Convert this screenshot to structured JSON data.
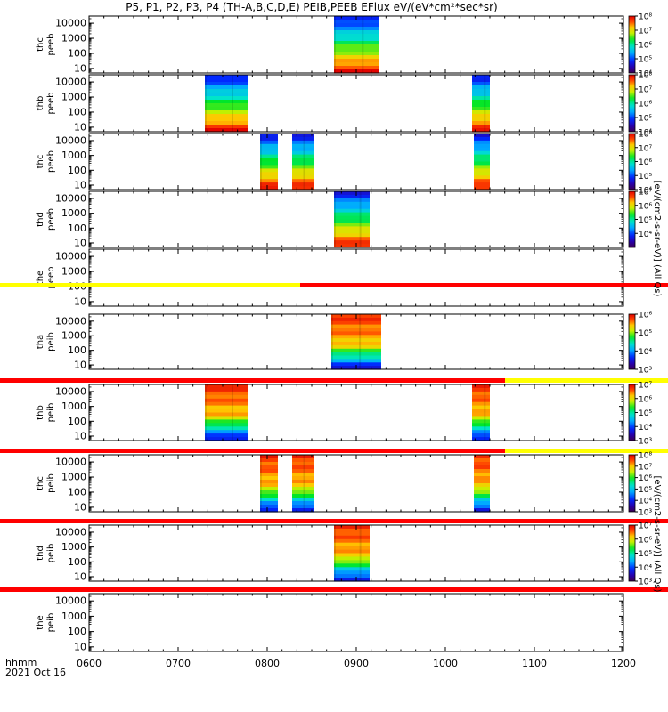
{
  "title": "P5, P1, P2, P3, P4 (TH-A,B,C,D,E) PEIB,PEEB EFlux eV/(eV*cm²*sec*sr)",
  "time_axis": {
    "start_label": "hhmm",
    "date_label": "2021 Oct 16",
    "ticks": [
      "0600",
      "0700",
      "0800",
      "0900",
      "1000",
      "1100",
      "1200"
    ],
    "tick_hours": [
      6,
      7,
      8,
      9,
      10,
      11,
      12
    ],
    "range_hours": [
      6,
      12
    ]
  },
  "colorbar_labels": {
    "electron": "[eV/(cm2-s-sr-eV)] (All Qs)",
    "ion": "[eV/(cm2-s-sr-eV)] (All Qs)"
  },
  "chart_data": {
    "type": "heatmap",
    "y_scale": "log",
    "y_range_eV": [
      5,
      30000
    ],
    "y_ticks": [
      "10000",
      "1000",
      "100",
      "10"
    ],
    "y_tick_values": [
      10000,
      1000,
      100,
      10
    ],
    "panels": [
      {
        "probe": "thc",
        "species": "peeb",
        "label1": "thc",
        "label2": "peeb",
        "blocks": [
          [
            8.75,
            9.25
          ]
        ],
        "cbar": {
          "min_exp": 4,
          "max_exp": 8,
          "ticks": [
            "10⁸",
            "10⁷",
            "10⁶",
            "10⁵",
            "10⁴"
          ]
        }
      },
      {
        "probe": "thb",
        "species": "peeb",
        "label1": "thb",
        "label2": "peeb",
        "blocks": [
          [
            7.3,
            7.78
          ],
          [
            10.3,
            10.5
          ]
        ],
        "cbar": {
          "min_exp": 4,
          "max_exp": 8,
          "ticks": [
            "10⁸",
            "10⁷",
            "10⁶",
            "10⁵",
            "10⁴"
          ]
        }
      },
      {
        "probe": "thc",
        "species": "peeb",
        "label1": "thc",
        "label2": "peeb",
        "blocks": [
          [
            7.92,
            8.12
          ],
          [
            8.28,
            8.53
          ],
          [
            10.32,
            10.5
          ]
        ],
        "cbar": {
          "min_exp": 4,
          "max_exp": 8,
          "ticks": [
            "10⁸",
            "10⁷",
            "10⁶",
            "10⁵",
            "10⁴"
          ]
        }
      },
      {
        "probe": "thd",
        "species": "peeb",
        "label1": "thd",
        "label2": "peeb",
        "blocks": [
          [
            8.75,
            9.15
          ]
        ],
        "cbar": {
          "min_exp": 4,
          "max_exp": 8,
          "ticks": [
            "10⁷",
            "10⁶",
            "10⁵",
            "10⁴"
          ]
        }
      },
      {
        "probe": "the",
        "species": "peeb",
        "label1": "the",
        "label2": "peeb",
        "blocks": [],
        "cbar": null
      },
      {
        "probe": "tha",
        "species": "peib",
        "label1": "tha",
        "label2": "peib",
        "blocks": [
          [
            8.72,
            9.28
          ]
        ],
        "cbar": {
          "min_exp": 3,
          "max_exp": 6,
          "ticks": [
            "10⁶",
            "10⁵",
            "10⁴",
            "10³"
          ]
        }
      },
      {
        "probe": "thb",
        "species": "peib",
        "label1": "thb",
        "label2": "peib",
        "blocks": [
          [
            7.3,
            7.78
          ],
          [
            10.3,
            10.5
          ]
        ],
        "cbar": {
          "min_exp": 3,
          "max_exp": 7,
          "ticks": [
            "10⁷",
            "10⁶",
            "10⁵",
            "10⁴",
            "10³"
          ]
        }
      },
      {
        "probe": "thc",
        "species": "peib",
        "label1": "thc",
        "label2": "peib",
        "blocks": [
          [
            7.92,
            8.12
          ],
          [
            8.28,
            8.53
          ],
          [
            10.32,
            10.5
          ]
        ],
        "cbar": {
          "min_exp": 3,
          "max_exp": 8,
          "ticks": [
            "10⁸",
            "10⁷",
            "10⁶",
            "10⁵",
            "10⁴",
            "10³"
          ]
        }
      },
      {
        "probe": "thd",
        "species": "peib",
        "label1": "thd",
        "label2": "peib",
        "blocks": [
          [
            8.75,
            9.15
          ]
        ],
        "cbar": {
          "min_exp": 3,
          "max_exp": 7,
          "ticks": [
            "10⁷",
            "10⁶",
            "10⁵",
            "10⁴",
            "10³"
          ]
        }
      },
      {
        "probe": "the",
        "species": "peib",
        "label1": "the",
        "label2": "peib",
        "blocks": [],
        "cbar": null
      }
    ],
    "mode_bars": [
      {
        "segments": [
          {
            "start": 6.0,
            "end": 8.37,
            "color": "#ffff00"
          },
          {
            "start": 8.37,
            "end": 12.0,
            "color": "#ff0000"
          }
        ]
      },
      {
        "segments": [
          {
            "start": 6.0,
            "end": 10.67,
            "color": "#ff0000"
          },
          {
            "start": 10.67,
            "end": 12.0,
            "color": "#ffff00"
          }
        ]
      },
      {
        "segments": [
          {
            "start": 6.0,
            "end": 10.67,
            "color": "#ff0000"
          },
          {
            "start": 10.67,
            "end": 12.0,
            "color": "#ffff00"
          }
        ]
      },
      {
        "segments": [
          {
            "start": 6.0,
            "end": 12.0,
            "color": "#ff0000"
          }
        ]
      },
      {
        "segments": [
          {
            "start": 6.0,
            "end": 12.0,
            "color": "#ff0000"
          }
        ]
      }
    ]
  }
}
